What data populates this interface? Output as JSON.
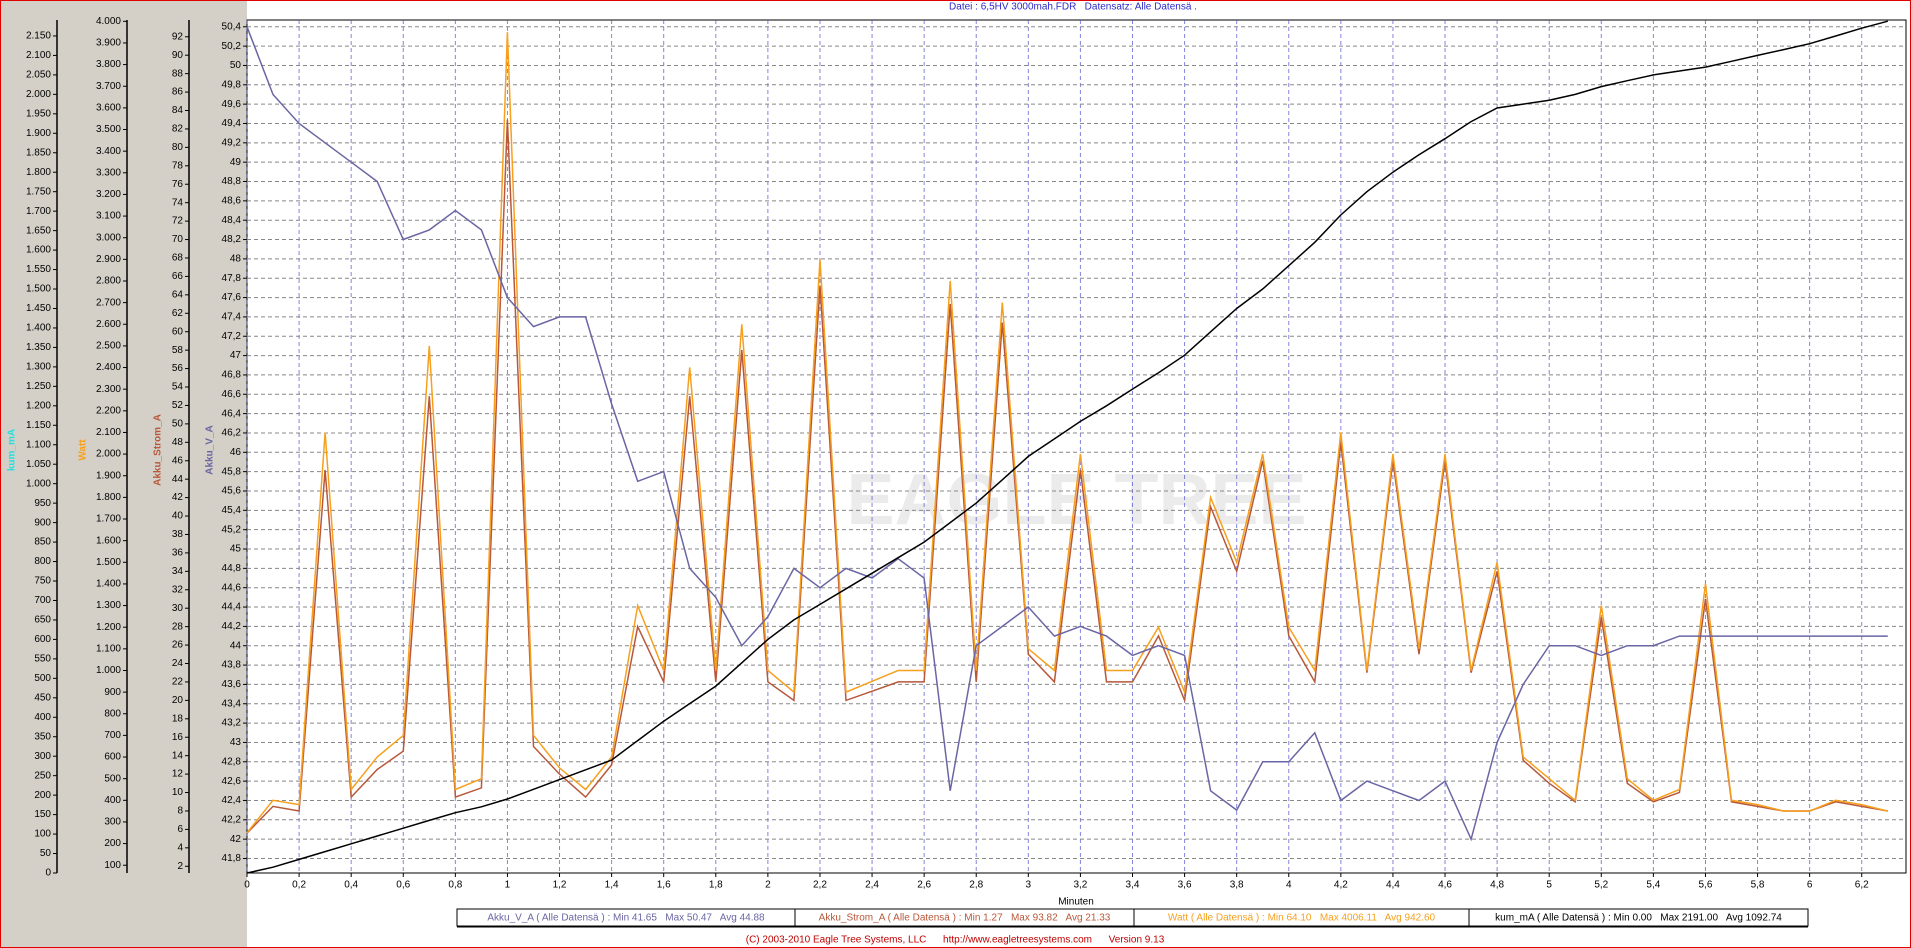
{
  "chart_data": {
    "type": "line",
    "title": "Datei : 6,5HV 3000mah.FDR   Datensatz: Alle Datensä .",
    "watermark": "EAGLE TREE",
    "footer": "(C) 2003-2010 Eagle Tree Systems, LLC      http://www.eagletreesystems.com      Version 9.13",
    "xlabel": "Minuten",
    "xlim": [
      0,
      6.37
    ],
    "xticks": [
      0,
      {
        "value": 0.2,
        "label": "0,2"
      },
      {
        "value": 0.4,
        "label": "0,4"
      },
      {
        "value": 0.6,
        "label": "0,6"
      },
      {
        "value": 0.8,
        "label": "0,8"
      },
      1,
      {
        "value": 1.2,
        "label": "1,2"
      },
      {
        "value": 1.4,
        "label": "1,4"
      },
      {
        "value": 1.6,
        "label": "1,6"
      },
      {
        "value": 1.8,
        "label": "1,8"
      },
      2,
      {
        "value": 2.2,
        "label": "2,2"
      },
      {
        "value": 2.4,
        "label": "2,4"
      },
      {
        "value": 2.6,
        "label": "2,6"
      },
      {
        "value": 2.8,
        "label": "2,8"
      },
      3,
      {
        "value": 3.2,
        "label": "3,2"
      },
      {
        "value": 3.4,
        "label": "3,4"
      },
      {
        "value": 3.6,
        "label": "3,6"
      },
      {
        "value": 3.8,
        "label": "3,8"
      },
      4,
      {
        "value": 4.2,
        "label": "4,2"
      },
      {
        "value": 4.4,
        "label": "4,4"
      },
      {
        "value": 4.6,
        "label": "4,6"
      },
      {
        "value": 4.8,
        "label": "4,8"
      },
      5,
      {
        "value": 5.2,
        "label": "5,2"
      },
      {
        "value": 5.4,
        "label": "5,4"
      },
      {
        "value": 5.6,
        "label": "5,6"
      },
      {
        "value": 5.8,
        "label": "5,8"
      },
      6,
      {
        "value": 6.2,
        "label": "6,2"
      }
    ],
    "grid": true,
    "x": [
      0,
      0.1,
      0.2,
      0.3,
      0.4,
      0.5,
      0.6,
      0.7,
      0.8,
      0.9,
      1.0,
      1.1,
      1.2,
      1.3,
      1.4,
      1.5,
      1.6,
      1.7,
      1.8,
      1.9,
      2.0,
      2.1,
      2.2,
      2.3,
      2.4,
      2.5,
      2.6,
      2.7,
      2.8,
      2.9,
      3.0,
      3.1,
      3.2,
      3.3,
      3.4,
      3.5,
      3.6,
      3.7,
      3.8,
      3.9,
      4.0,
      4.1,
      4.2,
      4.3,
      4.4,
      4.5,
      4.6,
      4.7,
      4.8,
      4.9,
      5.0,
      5.1,
      5.2,
      5.3,
      5.4,
      5.5,
      5.6,
      5.7,
      5.8,
      5.9,
      6.0,
      6.1,
      6.2,
      6.3
    ],
    "series": [
      {
        "name": "Akku_V_A",
        "color": "#6a66a3",
        "legend_label": "Akku_V_A ( Alle Datensä ) : Min 41.65   Max 50.47   Avg 44.88",
        "ylim": [
          41.65,
          50.47
        ],
        "yticks": [
          {
            "value": 41.8,
            "label": "41,8"
          },
          42,
          {
            "value": 42.2,
            "label": "42,2"
          },
          {
            "value": 42.4,
            "label": "42,4"
          },
          {
            "value": 42.6,
            "label": "42,6"
          },
          {
            "value": 42.8,
            "label": "42,8"
          },
          43,
          {
            "value": 43.2,
            "label": "43,2"
          },
          {
            "value": 43.4,
            "label": "43,4"
          },
          {
            "value": 43.6,
            "label": "43,6"
          },
          {
            "value": 43.8,
            "label": "43,8"
          },
          44,
          {
            "value": 44.2,
            "label": "44,2"
          },
          {
            "value": 44.4,
            "label": "44,4"
          },
          {
            "value": 44.6,
            "label": "44,6"
          },
          {
            "value": 44.8,
            "label": "44,8"
          },
          45,
          {
            "value": 45.2,
            "label": "45,2"
          },
          {
            "value": 45.4,
            "label": "45,4"
          },
          {
            "value": 45.6,
            "label": "45,6"
          },
          {
            "value": 45.8,
            "label": "45,8"
          },
          46,
          {
            "value": 46.2,
            "label": "46,2"
          },
          {
            "value": 46.4,
            "label": "46,4"
          },
          {
            "value": 46.6,
            "label": "46,6"
          },
          {
            "value": 46.8,
            "label": "46,8"
          },
          47,
          {
            "value": 47.2,
            "label": "47,2"
          },
          {
            "value": 47.4,
            "label": "47,4"
          },
          {
            "value": 47.6,
            "label": "47,6"
          },
          {
            "value": 47.8,
            "label": "47,8"
          },
          48,
          {
            "value": 48.2,
            "label": "48,2"
          },
          {
            "value": 48.4,
            "label": "48,4"
          },
          {
            "value": 48.6,
            "label": "48,6"
          },
          {
            "value": 48.8,
            "label": "48,8"
          },
          49,
          {
            "value": 49.2,
            "label": "49,2"
          },
          {
            "value": 49.4,
            "label": "49,4"
          },
          {
            "value": 49.6,
            "label": "49,6"
          },
          {
            "value": 49.8,
            "label": "49,8"
          },
          50,
          {
            "value": 50.2,
            "label": "50,2"
          },
          {
            "value": 50.4,
            "label": "50,4"
          }
        ],
        "values": [
          50.4,
          49.7,
          49.4,
          49.2,
          49.0,
          48.8,
          48.2,
          48.3,
          48.5,
          48.3,
          47.6,
          47.3,
          47.4,
          47.4,
          46.5,
          45.7,
          45.8,
          44.8,
          44.5,
          44.0,
          44.3,
          44.8,
          44.6,
          44.8,
          44.7,
          44.9,
          44.7,
          42.5,
          44.0,
          44.2,
          44.4,
          44.1,
          44.2,
          44.1,
          43.9,
          44.0,
          43.9,
          42.5,
          42.3,
          42.8,
          42.8,
          43.1,
          42.4,
          42.6,
          42.5,
          42.4,
          42.6,
          42.0,
          43.0,
          43.6,
          44.0,
          44.0,
          43.9,
          44.0,
          44.0,
          44.1,
          44.1,
          44.1,
          44.1,
          44.1,
          44.1,
          44.1,
          44.1,
          44.1
        ]
      },
      {
        "name": "Akku_Strom_A",
        "color": "#b8583a",
        "legend_label": "Akku_Strom_A ( Alle Datensä ) : Min 1.27   Max 93.82   Avg 21.33",
        "ylim": [
          1.27,
          93.82
        ],
        "yticks": [
          2,
          4,
          6,
          8,
          10,
          12,
          14,
          16,
          18,
          20,
          22,
          24,
          26,
          28,
          30,
          32,
          34,
          36,
          38,
          40,
          42,
          44,
          46,
          48,
          50,
          52,
          54,
          56,
          58,
          60,
          62,
          64,
          66,
          68,
          70,
          72,
          74,
          76,
          78,
          80,
          82,
          84,
          86,
          88,
          90,
          92
        ],
        "values": [
          5.6,
          8.5,
          8,
          45,
          9.5,
          12.5,
          14.5,
          53,
          9.5,
          10.5,
          83,
          15,
          12,
          9.5,
          13,
          28,
          22,
          53,
          22,
          58,
          22,
          20,
          65,
          20,
          21,
          22,
          22,
          63,
          22,
          61,
          25,
          22,
          45,
          22,
          22,
          27,
          20,
          41,
          34,
          46,
          27,
          22,
          48,
          23,
          46,
          25,
          46,
          23,
          34,
          13.5,
          11,
          9,
          29,
          11,
          9,
          10,
          31,
          9,
          8.5,
          8,
          8,
          9,
          8.5,
          8
        ]
      },
      {
        "name": "Watt",
        "color": "#f7a01e",
        "legend_label": "Watt ( Alle Datensä ) : Min 64.10   Max 4006.11   Avg 942.60",
        "ylim": [
          64.1,
          4006.11
        ],
        "yticks": [
          100,
          200,
          300,
          400,
          500,
          600,
          700,
          800,
          900,
          {
            "value": 1000,
            "label": "1.000"
          },
          {
            "value": 1100,
            "label": "1.100"
          },
          {
            "value": 1200,
            "label": "1.200"
          },
          {
            "value": 1300,
            "label": "1.300"
          },
          {
            "value": 1400,
            "label": "1.400"
          },
          {
            "value": 1500,
            "label": "1.500"
          },
          {
            "value": 1600,
            "label": "1.600"
          },
          {
            "value": 1700,
            "label": "1.700"
          },
          {
            "value": 1800,
            "label": "1.800"
          },
          {
            "value": 1900,
            "label": "1.900"
          },
          {
            "value": 2000,
            "label": "2.000"
          },
          {
            "value": 2100,
            "label": "2.100"
          },
          {
            "value": 2200,
            "label": "2.200"
          },
          {
            "value": 2300,
            "label": "2.300"
          },
          {
            "value": 2400,
            "label": "2.400"
          },
          {
            "value": 2500,
            "label": "2.500"
          },
          {
            "value": 2600,
            "label": "2.600"
          },
          {
            "value": 2700,
            "label": "2.700"
          },
          {
            "value": 2800,
            "label": "2.800"
          },
          {
            "value": 2900,
            "label": "2.900"
          },
          {
            "value": 3000,
            "label": "3.000"
          },
          {
            "value": 3100,
            "label": "3.100"
          },
          {
            "value": 3200,
            "label": "3.200"
          },
          {
            "value": 3300,
            "label": "3.300"
          },
          {
            "value": 3400,
            "label": "3.400"
          },
          {
            "value": 3500,
            "label": "3.500"
          },
          {
            "value": 3600,
            "label": "3.600"
          },
          {
            "value": 3700,
            "label": "3.700"
          },
          {
            "value": 3800,
            "label": "3.800"
          },
          {
            "value": 3900,
            "label": "3.900"
          },
          {
            "value": 4000,
            "label": "4.000"
          }
        ],
        "values": [
          250,
          400,
          380,
          2100,
          450,
          600,
          700,
          2500,
          450,
          500,
          3950,
          700,
          550,
          450,
          600,
          1300,
          1000,
          2400,
          1000,
          2600,
          1000,
          900,
          2900,
          900,
          950,
          1000,
          1000,
          2800,
          1000,
          2700,
          1100,
          1000,
          2000,
          1000,
          1000,
          1200,
          900,
          1800,
          1500,
          2000,
          1200,
          1000,
          2100,
          1000,
          2000,
          1100,
          2000,
          1000,
          1500,
          600,
          500,
          400,
          1300,
          500,
          400,
          450,
          1400,
          400,
          380,
          350,
          350,
          400,
          380,
          350
        ]
      },
      {
        "name": "kum_mA",
        "color": "#000000",
        "title_color": "#22e0e0",
        "legend_label": "kum_mA ( Alle Datensä ) : Min 0.00   Max 2191.00   Avg 1092.74",
        "ylim": [
          0,
          2191
        ],
        "yticks": [
          0,
          50,
          100,
          150,
          200,
          250,
          300,
          350,
          400,
          450,
          500,
          550,
          600,
          650,
          700,
          750,
          800,
          850,
          900,
          950,
          {
            "value": 1000,
            "label": "1.000"
          },
          {
            "value": 1050,
            "label": "1.050"
          },
          {
            "value": 1100,
            "label": "1.100"
          },
          {
            "value": 1150,
            "label": "1.150"
          },
          {
            "value": 1200,
            "label": "1.200"
          },
          {
            "value": 1250,
            "label": "1.250"
          },
          {
            "value": 1300,
            "label": "1.300"
          },
          {
            "value": 1350,
            "label": "1.350"
          },
          {
            "value": 1400,
            "label": "1.400"
          },
          {
            "value": 1450,
            "label": "1.450"
          },
          {
            "value": 1500,
            "label": "1.500"
          },
          {
            "value": 1550,
            "label": "1.550"
          },
          {
            "value": 1600,
            "label": "1.600"
          },
          {
            "value": 1650,
            "label": "1.650"
          },
          {
            "value": 1700,
            "label": "1.700"
          },
          {
            "value": 1750,
            "label": "1.750"
          },
          {
            "value": 1800,
            "label": "1.800"
          },
          {
            "value": 1850,
            "label": "1.850"
          },
          {
            "value": 1900,
            "label": "1.900"
          },
          {
            "value": 1950,
            "label": "1.950"
          },
          {
            "value": 2000,
            "label": "2.000"
          },
          {
            "value": 2050,
            "label": "2.050"
          },
          {
            "value": 2100,
            "label": "2.100"
          },
          {
            "value": 2150,
            "label": "2.150"
          }
        ],
        "values": [
          0,
          15,
          35,
          55,
          75,
          95,
          115,
          135,
          155,
          170,
          190,
          215,
          240,
          265,
          290,
          340,
          390,
          435,
          480,
          540,
          600,
          650,
          690,
          730,
          770,
          810,
          850,
          900,
          950,
          1010,
          1070,
          1115,
          1160,
          1200,
          1243,
          1285,
          1330,
          1390,
          1450,
          1500,
          1560,
          1620,
          1690,
          1750,
          1800,
          1845,
          1886,
          1930,
          1965,
          1975,
          1985,
          2000,
          2020,
          2035,
          2050,
          2060,
          2070,
          2085,
          2100,
          2115,
          2130,
          2150,
          2170,
          2188
        ]
      }
    ]
  }
}
